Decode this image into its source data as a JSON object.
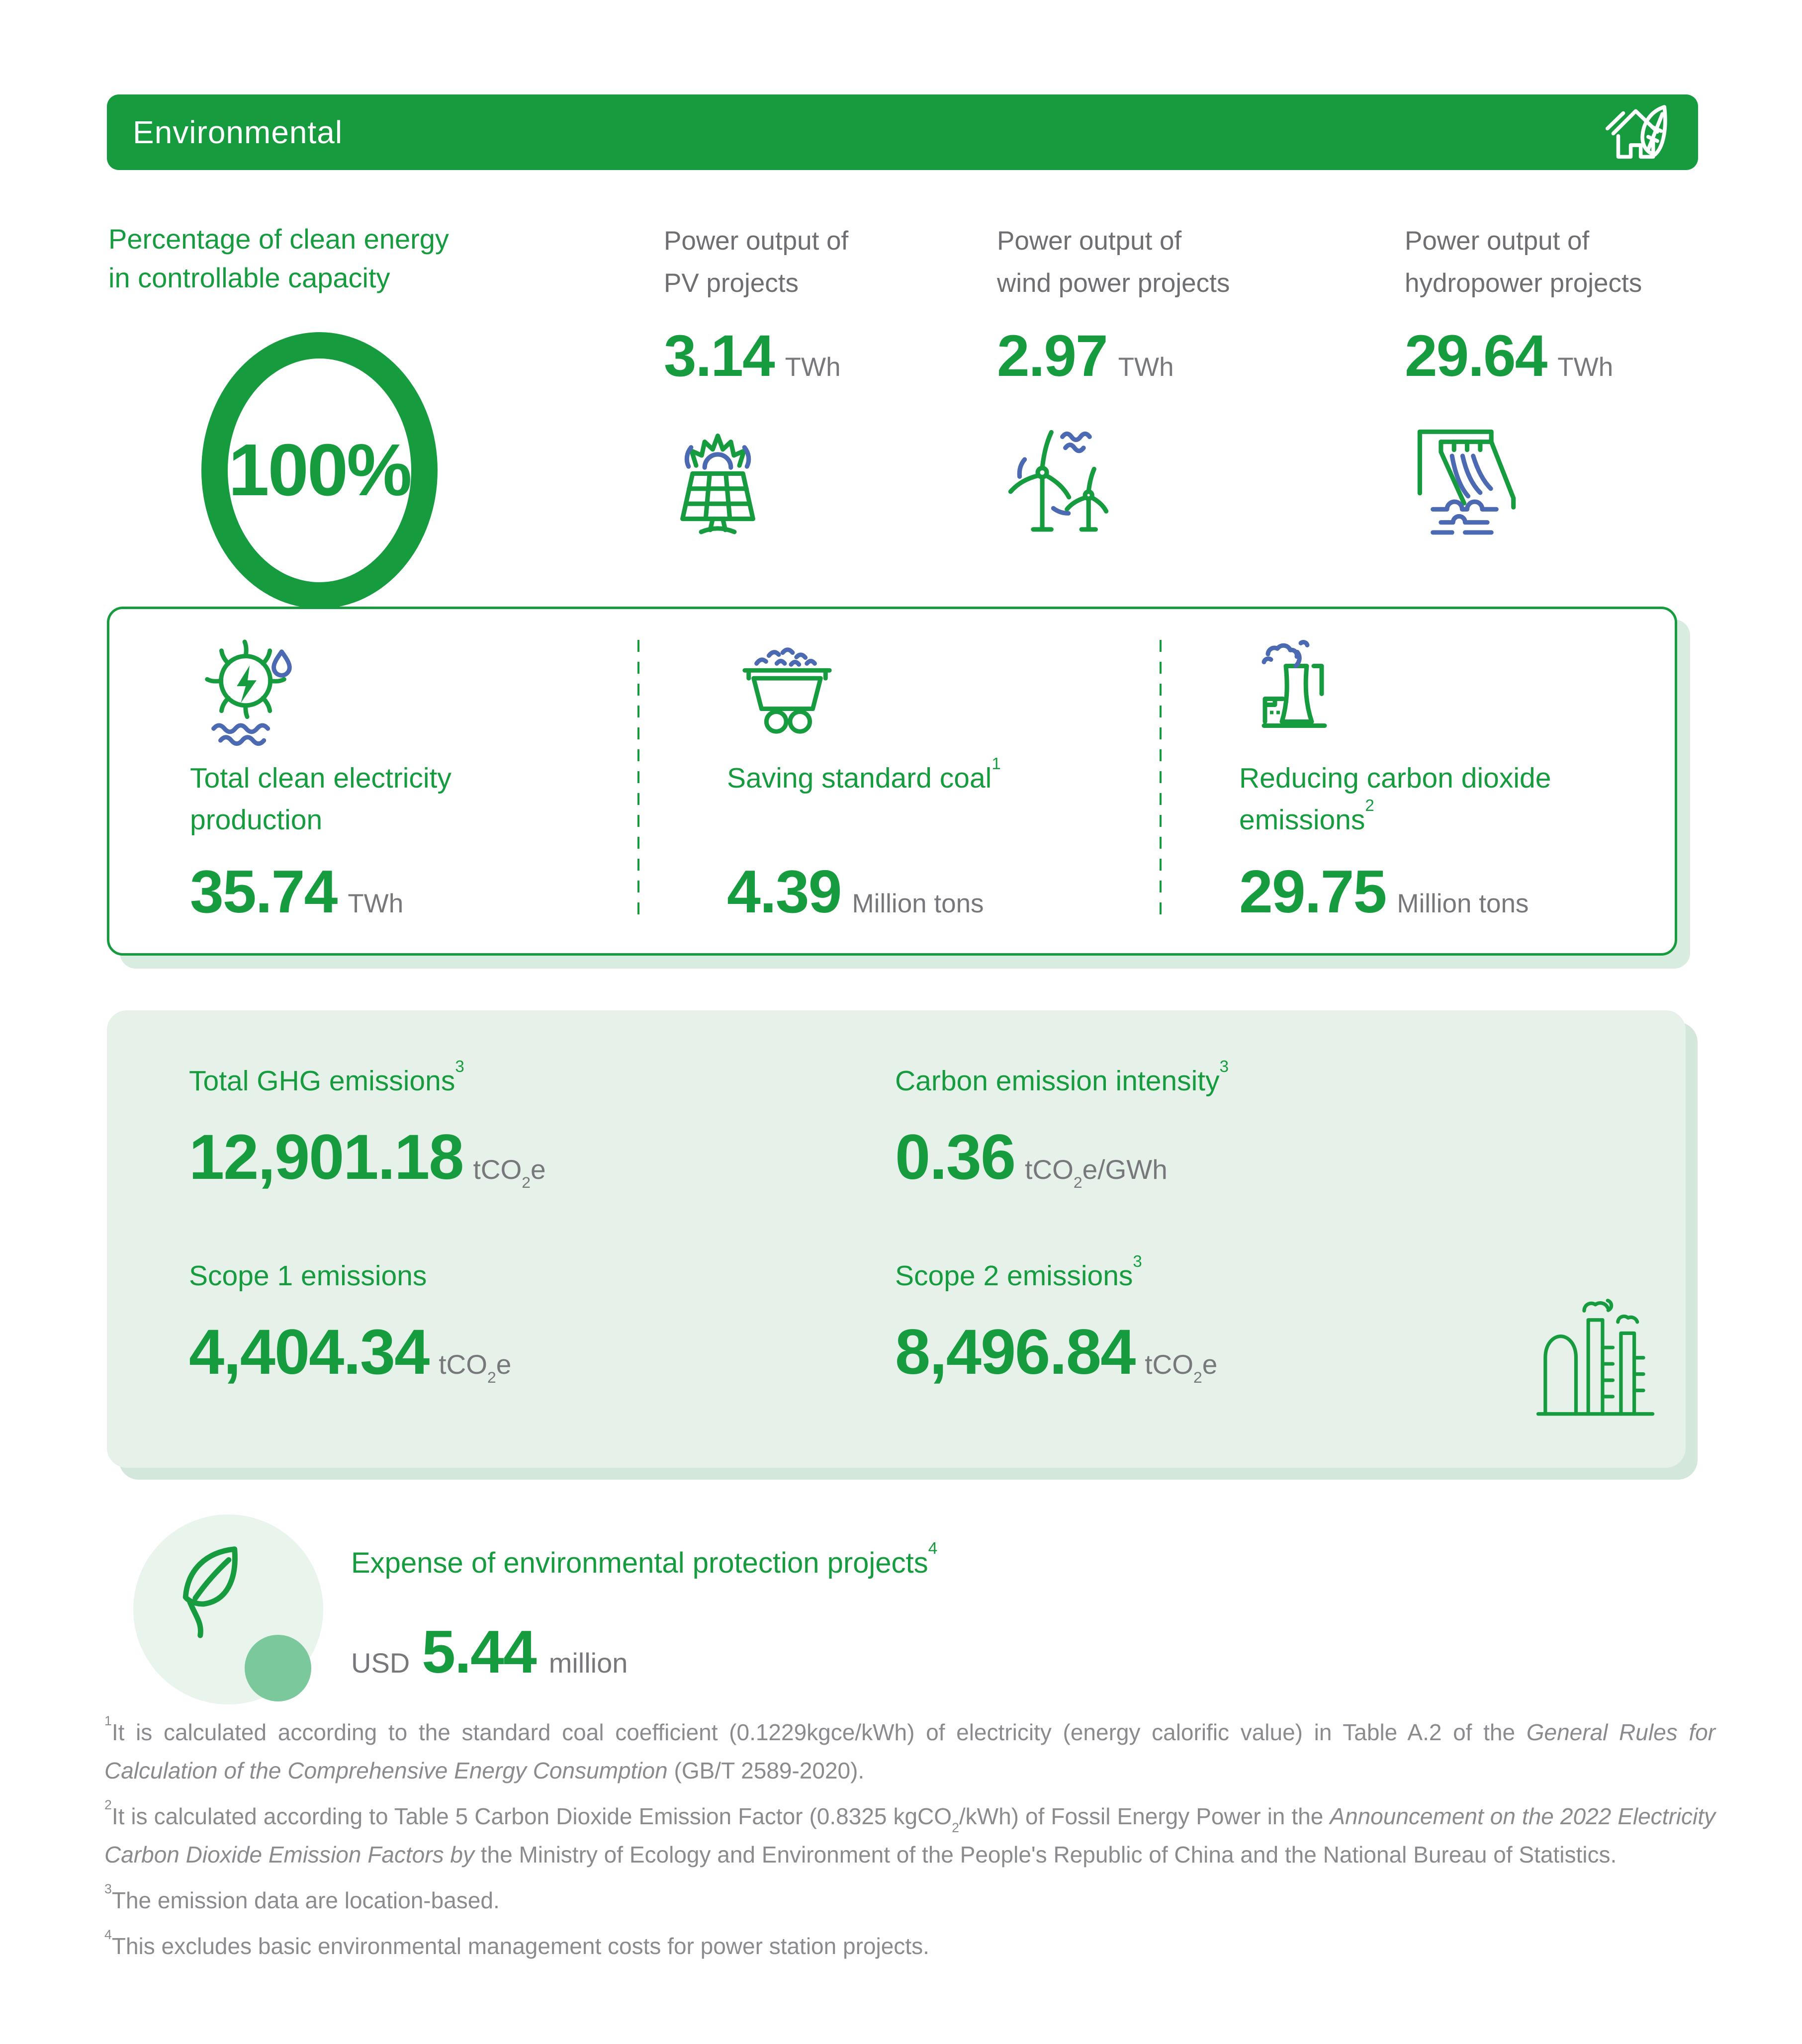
{
  "colors": {
    "brand_green": "#169c3f",
    "accent_blue": "#4b6ab2",
    "label_gray": "#6e6f72",
    "unit_gray": "#77787b",
    "footnote_gray": "#8a8b8e",
    "mint_background": "#e5f1e9",
    "leaf_circle_background": "#e9f4ed",
    "small_circle_green": "#7cc89d",
    "header_text": "#ffffff"
  },
  "header": {
    "title": "Environmental",
    "icon": "house-leaf-icon"
  },
  "clean_energy": {
    "lines": [
      "Percentage of clean energy",
      "in controllable capacity"
    ],
    "value": "100%"
  },
  "power_outputs": [
    {
      "lines": [
        "Power output of",
        "PV projects"
      ],
      "value": "3.14",
      "unit": "TWh",
      "icon": "solar-panel-sun-icon"
    },
    {
      "lines": [
        "Power output of",
        "wind power projects"
      ],
      "value": "2.97",
      "unit": "TWh",
      "icon": "wind-turbines-icon"
    },
    {
      "lines": [
        "Power output of",
        "hydropower projects"
      ],
      "value": "29.64",
      "unit": "TWh",
      "icon": "hydropower-dam-icon"
    }
  ],
  "stat_box": [
    {
      "title_lines": [
        [
          {
            "t": "Total clean electricity"
          }
        ],
        [
          {
            "t": "production"
          }
        ]
      ],
      "value": "35.74",
      "unit": "TWh",
      "icon": "water-turbine-icon"
    },
    {
      "title_lines": [
        [
          {
            "t": "Saving standard coal"
          },
          {
            "s": "sup",
            "t": "1"
          }
        ]
      ],
      "value": "4.39",
      "unit": "Million tons",
      "icon": "coal-cart-icon"
    },
    {
      "title_lines": [
        [
          {
            "t": "Reducing carbon dioxide"
          }
        ],
        [
          {
            "t": "emissions"
          },
          {
            "s": "sup",
            "t": "2"
          }
        ]
      ],
      "value": "29.75",
      "unit": "Million tons",
      "icon": "factory-smoke-icon"
    }
  ],
  "ghg": {
    "icon": "factory-chimneys-icon",
    "items": [
      {
        "title": [
          {
            "t": "Total GHG emissions"
          },
          {
            "s": "sup",
            "t": "3"
          }
        ],
        "value": "12,901.18",
        "unit": [
          {
            "t": "tCO"
          },
          {
            "s": "sub",
            "t": "2"
          },
          {
            "t": "e"
          }
        ]
      },
      {
        "title": [
          {
            "t": "Carbon emission intensity"
          },
          {
            "s": "sup",
            "t": "3"
          }
        ],
        "value": "0.36",
        "unit": [
          {
            "t": "tCO"
          },
          {
            "s": "sub",
            "t": "2"
          },
          {
            "t": "e/GWh"
          }
        ]
      },
      {
        "title": [
          {
            "t": "Scope 1 emissions"
          }
        ],
        "value": "4,404.34",
        "unit": [
          {
            "t": "tCO"
          },
          {
            "s": "sub",
            "t": "2"
          },
          {
            "t": "e"
          }
        ]
      },
      {
        "title": [
          {
            "t": "Scope 2 emissions"
          },
          {
            "s": "sup",
            "t": "3"
          }
        ],
        "value": "8,496.84",
        "unit": [
          {
            "t": "tCO"
          },
          {
            "s": "sub",
            "t": "2"
          },
          {
            "t": "e"
          }
        ]
      }
    ]
  },
  "expense": {
    "icon": "leaf-icon",
    "title": [
      {
        "t": "Expense of environmental protection projects"
      },
      {
        "s": "sup",
        "t": "4"
      }
    ],
    "currency": "USD",
    "value": "5.44",
    "unit": "million"
  },
  "footnotes": [
    [
      {
        "s": "sup",
        "t": "1"
      },
      {
        "t": "It is calculated according to the standard coal coefficient (0.1229kgce/kWh) of electricity (energy calorific value) in Table A.2 of the "
      },
      {
        "s": "i",
        "t": "General Rules for Calculation of the Comprehensive Energy Consumption"
      },
      {
        "t": " (GB/T 2589-2020)."
      }
    ],
    [
      {
        "s": "sup",
        "t": "2"
      },
      {
        "t": "It is calculated according to Table 5 Carbon Dioxide Emission Factor (0.8325 kgCO"
      },
      {
        "s": "sub",
        "t": "2"
      },
      {
        "t": "/kWh) of Fossil Energy Power in the "
      },
      {
        "s": "i",
        "t": "Announcement on the 2022 Electricity Carbon Dioxide Emission Factors by"
      },
      {
        "t": " the Ministry of Ecology and Environment of the People's Republic of China and the National Bureau of Statistics."
      }
    ],
    [
      {
        "s": "sup",
        "t": "3"
      },
      {
        "t": "The emission data are location-based."
      }
    ],
    [
      {
        "s": "sup",
        "t": "4"
      },
      {
        "t": "This excludes basic environmental management costs for power station projects."
      }
    ]
  ]
}
